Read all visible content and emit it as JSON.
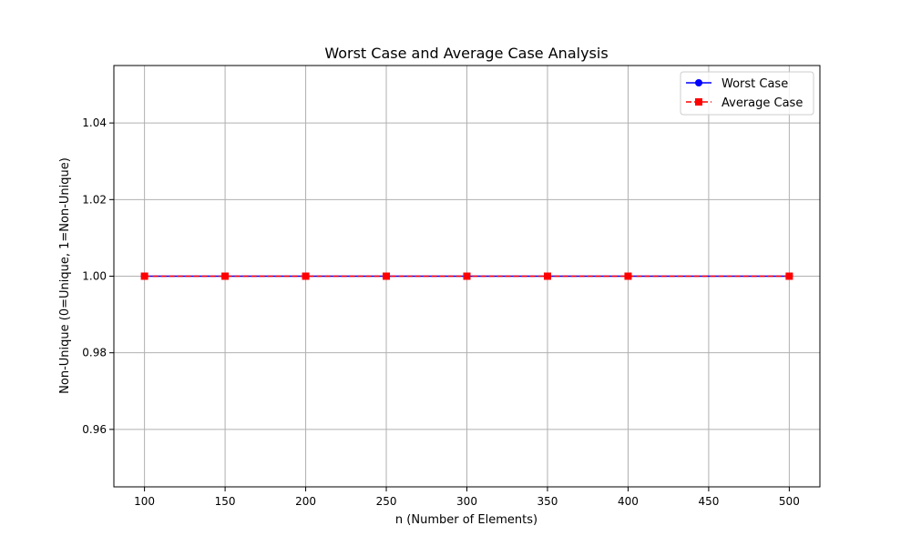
{
  "chart_data": {
    "type": "line",
    "title": "Worst Case and Average Case Analysis",
    "xlabel": "n (Number of Elements)",
    "ylabel": "Non-Unique (0=Unique, 1=Non-Unique)",
    "x": [
      100,
      150,
      200,
      250,
      300,
      350,
      400,
      500
    ],
    "xlim": [
      81,
      519
    ],
    "ylim": [
      0.945,
      1.055
    ],
    "xticks": [
      100,
      150,
      200,
      250,
      300,
      350,
      400,
      450,
      500
    ],
    "yticks": [
      0.96,
      0.98,
      1.0,
      1.02,
      1.04
    ],
    "ytick_labels": [
      "0.96",
      "0.98",
      "1.00",
      "1.02",
      "1.04"
    ],
    "grid": true,
    "legend_position": "top-right",
    "series": [
      {
        "name": "Worst Case",
        "values": [
          1,
          1,
          1,
          1,
          1,
          1,
          1,
          1
        ],
        "color": "#0000ff",
        "marker": "circle",
        "line_style": "solid"
      },
      {
        "name": "Average Case",
        "values": [
          1,
          1,
          1,
          1,
          1,
          1,
          1,
          1
        ],
        "color": "#ff0000",
        "marker": "square",
        "line_style": "dashed"
      }
    ]
  }
}
